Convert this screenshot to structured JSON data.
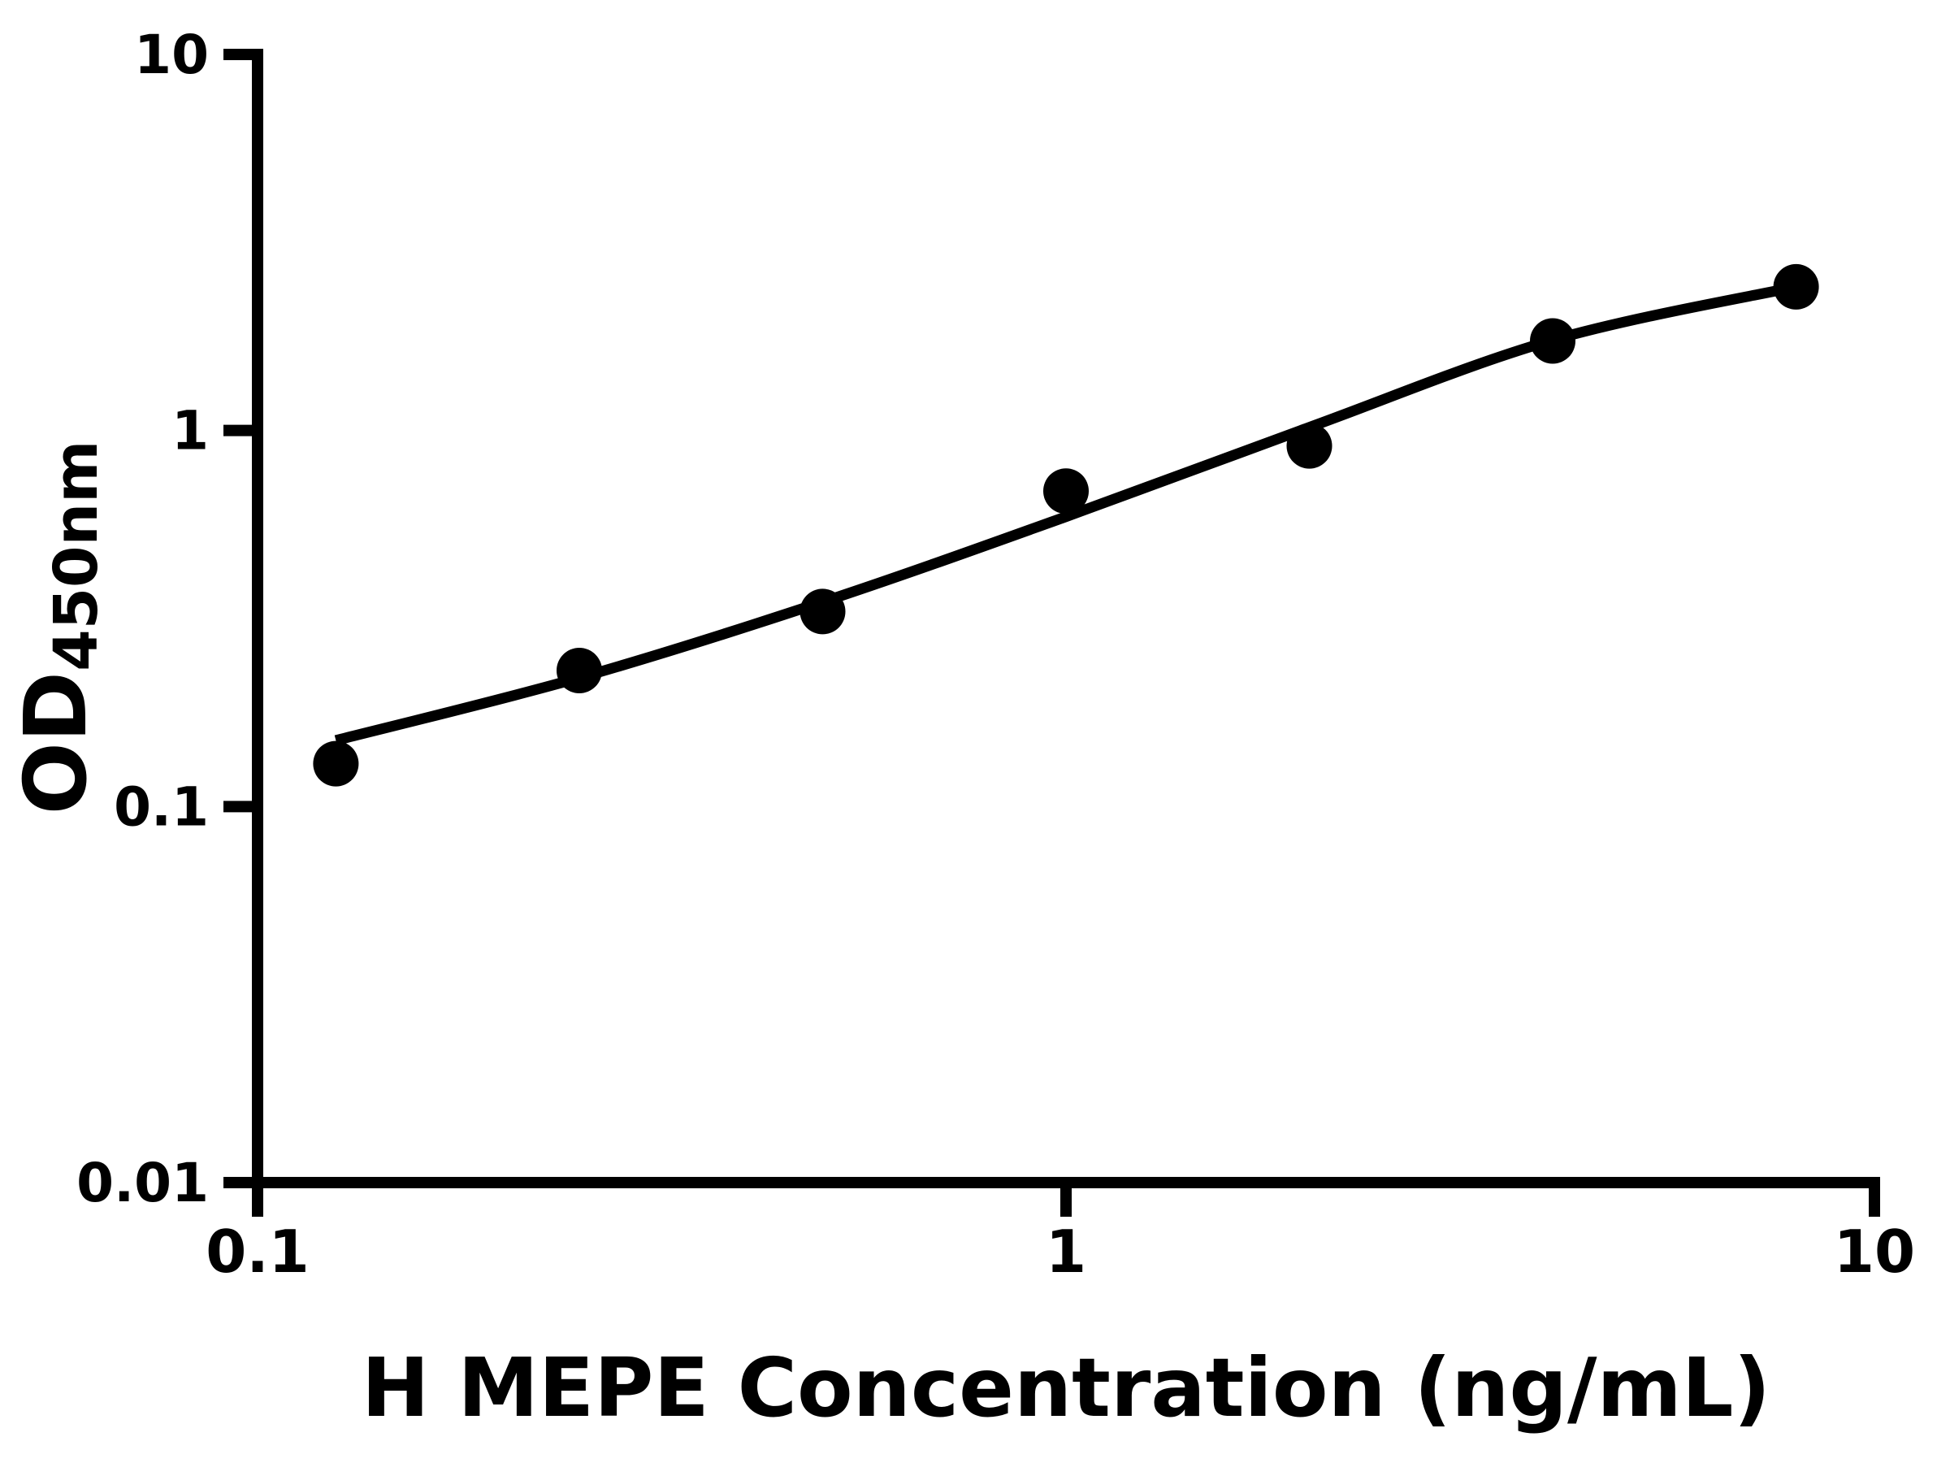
{
  "figure": {
    "background_color": "#ffffff",
    "ink_color": "#000000"
  },
  "chart_data": {
    "type": "scatter",
    "xlabel": "H MEPE Concentration (ng/mL)",
    "ylabel": "OD450nm",
    "ylabel_main": "OD",
    "ylabel_sub": "450nm",
    "x_scale": "log",
    "y_scale": "log",
    "xlim": [
      0.1,
      10
    ],
    "ylim": [
      0.01,
      10
    ],
    "grid": false,
    "legend": false,
    "x_ticks": [
      {
        "value": 0.1,
        "label": "0.1"
      },
      {
        "value": 1,
        "label": "1"
      },
      {
        "value": 10,
        "label": "10"
      }
    ],
    "y_ticks": [
      {
        "value": 10,
        "label": "10"
      },
      {
        "value": 1,
        "label": "1"
      },
      {
        "value": 0.1,
        "label": "0.1"
      },
      {
        "value": 0.01,
        "label": "0.01"
      }
    ],
    "series": [
      {
        "name": "H MEPE standard points",
        "type": "scatter",
        "marker": "filled-circle",
        "color": "#000000",
        "marker_radius_px": 28,
        "points": [
          {
            "x": 0.125,
            "y": 0.13
          },
          {
            "x": 0.25,
            "y": 0.23
          },
          {
            "x": 0.5,
            "y": 0.33
          },
          {
            "x": 1,
            "y": 0.69
          },
          {
            "x": 2,
            "y": 0.91
          },
          {
            "x": 4,
            "y": 1.73
          },
          {
            "x": 8,
            "y": 2.41
          }
        ]
      },
      {
        "name": "fitted standard curve",
        "type": "line",
        "color": "#000000",
        "stroke_width_px": 13,
        "points": [
          {
            "x": 0.125,
            "y": 0.15
          },
          {
            "x": 0.25,
            "y": 0.22
          },
          {
            "x": 0.5,
            "y": 0.35
          },
          {
            "x": 1,
            "y": 0.59
          },
          {
            "x": 2,
            "y": 1.02
          },
          {
            "x": 4,
            "y": 1.74
          },
          {
            "x": 8,
            "y": 2.41
          }
        ]
      }
    ]
  }
}
